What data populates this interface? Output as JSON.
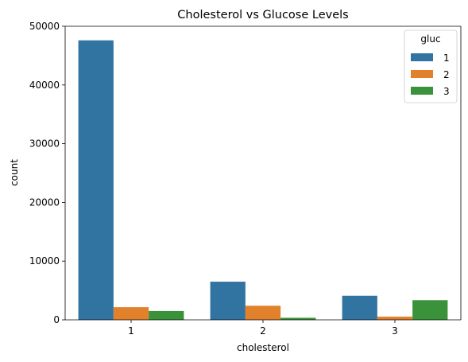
{
  "chart_data": {
    "type": "bar",
    "title": "Cholesterol vs Glucose Levels",
    "xlabel": "cholesterol",
    "ylabel": "count",
    "categories": [
      "1",
      "2",
      "3"
    ],
    "ylim": [
      0,
      50000
    ],
    "yticks": [
      0,
      10000,
      20000,
      30000,
      40000,
      50000
    ],
    "grid": false,
    "legend": {
      "title": "gluc",
      "placement": "top-right"
    },
    "series": [
      {
        "name": "1",
        "color": "#3274a1",
        "values": [
          47600,
          6500,
          4100
        ]
      },
      {
        "name": "2",
        "color": "#e1812c",
        "values": [
          2150,
          2400,
          550
        ]
      },
      {
        "name": "3",
        "color": "#3a923a",
        "values": [
          1500,
          350,
          3350
        ]
      }
    ]
  }
}
